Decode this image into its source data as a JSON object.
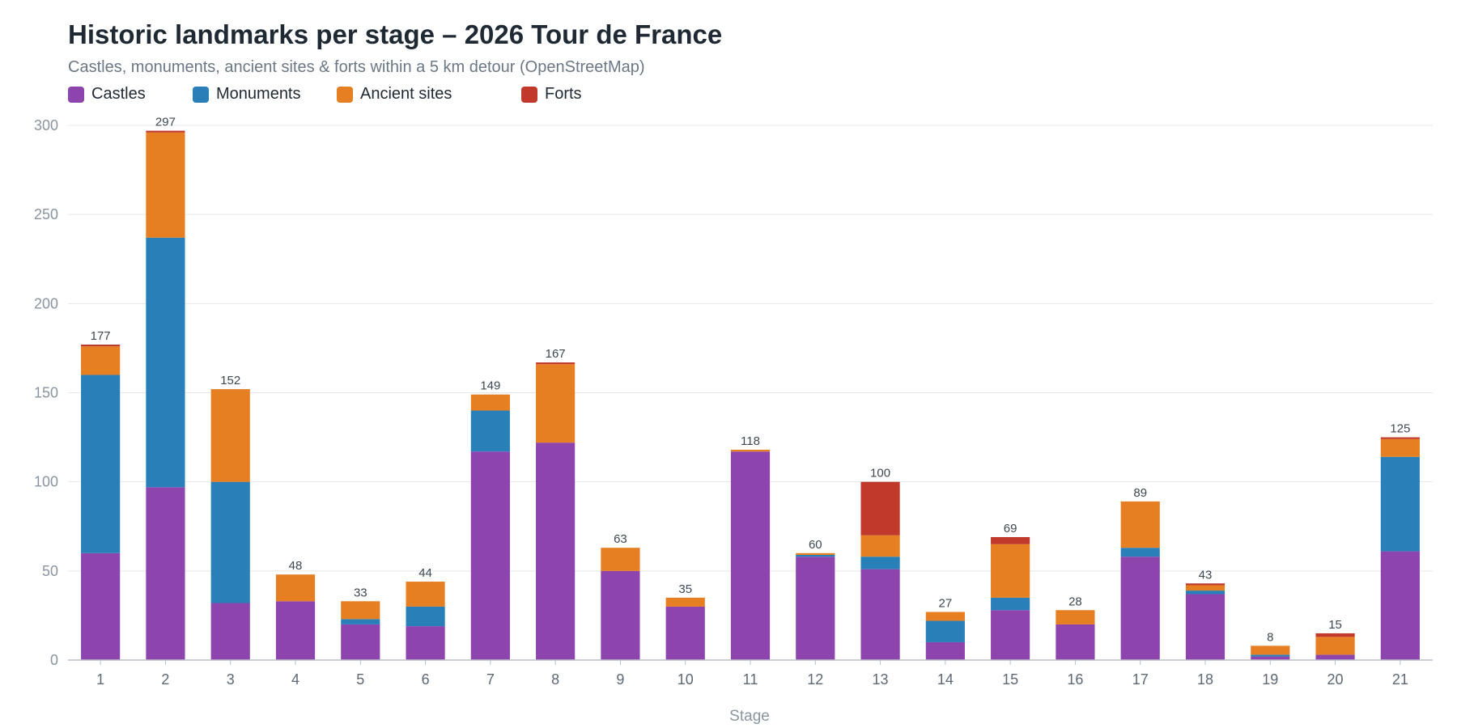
{
  "chart_data": {
    "type": "bar",
    "stacked": true,
    "title": "Historic landmarks per stage – 2026 Tour de France",
    "subtitle": "Castles, monuments, ancient sites & forts within a 5 km detour (OpenStreetMap)",
    "xlabel": "Stage",
    "ylabel": "",
    "ylim": [
      0,
      300
    ],
    "yticks": [
      0,
      50,
      100,
      150,
      200,
      250,
      300
    ],
    "grid": true,
    "legend_position": "top-left",
    "categories": [
      "1",
      "2",
      "3",
      "4",
      "5",
      "6",
      "7",
      "8",
      "9",
      "10",
      "11",
      "12",
      "13",
      "14",
      "15",
      "16",
      "17",
      "18",
      "19",
      "20",
      "21"
    ],
    "series": [
      {
        "name": "Castles",
        "color": "#8e44ad",
        "values": [
          60,
          97,
          32,
          33,
          20,
          19,
          117,
          122,
          50,
          30,
          117,
          58,
          51,
          10,
          28,
          20,
          58,
          37,
          2,
          3,
          61
        ]
      },
      {
        "name": "Monuments",
        "color": "#2980b9",
        "values": [
          100,
          140,
          68,
          0,
          3,
          11,
          23,
          0,
          0,
          0,
          0,
          1,
          7,
          12,
          7,
          0,
          5,
          2,
          1,
          0,
          53
        ]
      },
      {
        "name": "Ancient sites",
        "color": "#e67e22",
        "values": [
          16,
          59,
          52,
          15,
          10,
          14,
          9,
          44,
          13,
          5,
          1,
          1,
          12,
          5,
          30,
          8,
          26,
          3,
          5,
          10,
          10
        ]
      },
      {
        "name": "Forts",
        "color": "#c0392b",
        "values": [
          1,
          1,
          0,
          0,
          0,
          0,
          0,
          1,
          0,
          0,
          0,
          0,
          30,
          0,
          4,
          0,
          0,
          1,
          0,
          2,
          1
        ]
      }
    ],
    "totals": [
      177,
      297,
      152,
      48,
      33,
      44,
      149,
      167,
      63,
      35,
      118,
      60,
      100,
      27,
      69,
      28,
      89,
      43,
      8,
      15,
      125
    ]
  }
}
